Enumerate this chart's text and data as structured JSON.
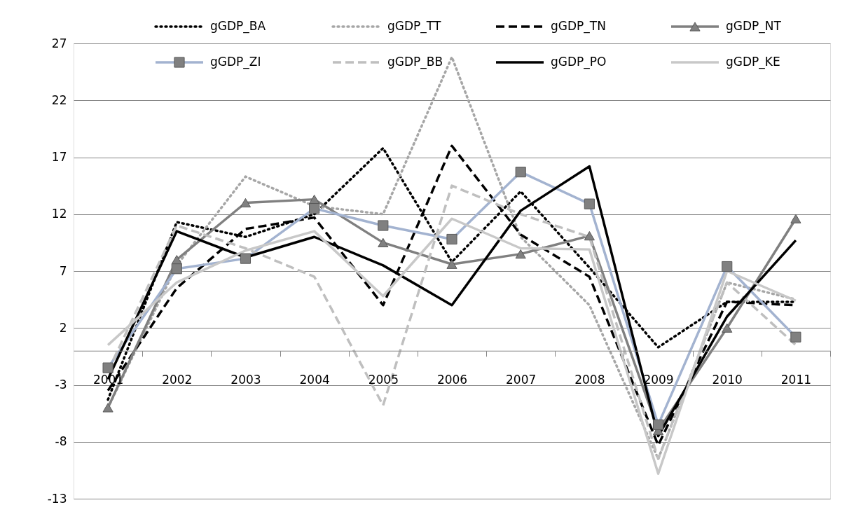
{
  "chart_data": {
    "type": "line",
    "categories": [
      "2001",
      "2002",
      "2003",
      "2004",
      "2005",
      "2006",
      "2007",
      "2008",
      "2009",
      "2010",
      "2011"
    ],
    "ylim": [
      -13,
      27
    ],
    "yticks": [
      -13,
      -8,
      -3,
      2,
      7,
      12,
      17,
      22,
      27
    ],
    "grid": "y",
    "legend": "top",
    "series": [
      {
        "name": "gGDP_BA",
        "color": "#000000",
        "line_style": "dotted",
        "marker": "none",
        "values": [
          -4.3,
          11.3,
          10,
          12,
          17.8,
          7.8,
          14,
          7.3,
          0.3,
          4.3,
          4.3
        ]
      },
      {
        "name": "gGDP_TT",
        "color": "#a6a6a6",
        "line_style": "dotted",
        "marker": "none",
        "values": [
          -5,
          7.5,
          15.3,
          12.7,
          12,
          25.8,
          10,
          4,
          -9.5,
          6,
          4.5
        ]
      },
      {
        "name": "gGDP_TN",
        "color": "#000000",
        "line_style": "dashed",
        "marker": "none",
        "values": [
          -3.5,
          5.5,
          10.7,
          11.7,
          4,
          18,
          10.2,
          6.5,
          -8.3,
          4.3,
          4
        ]
      },
      {
        "name": "gGDP_NT",
        "color": "#808080",
        "line_style": "solid",
        "marker": "triangle",
        "values": [
          -5,
          8,
          13,
          13.3,
          9.5,
          7.6,
          8.5,
          10.1,
          -7,
          2,
          11.6
        ]
      },
      {
        "name": "gGDP_ZI",
        "color": "#a3b3d0",
        "line_style": "solid",
        "marker": "square",
        "values": [
          -1.5,
          7.2,
          8.1,
          12.5,
          11,
          9.8,
          15.7,
          12.9,
          -6.5,
          7.4,
          1.2
        ]
      },
      {
        "name": "gGDP_BB",
        "color": "#bfbfbf",
        "line_style": "dashed",
        "marker": "none",
        "values": [
          -1.8,
          11,
          9,
          6.5,
          -4.8,
          14.5,
          12,
          10,
          -9.5,
          6,
          0.5
        ]
      },
      {
        "name": "gGDP_PO",
        "color": "#000000",
        "line_style": "solid",
        "marker": "none",
        "values": [
          -2.5,
          10.5,
          8.2,
          10,
          7.5,
          4,
          12.3,
          16.2,
          -7.5,
          3,
          9.7
        ]
      },
      {
        "name": "gGDP_KE",
        "color": "#c8c8c8",
        "line_style": "solid",
        "marker": "none",
        "values": [
          0.5,
          6,
          8.8,
          10.5,
          4.8,
          11.6,
          9,
          8.9,
          -10.8,
          7,
          4.4
        ]
      }
    ]
  }
}
